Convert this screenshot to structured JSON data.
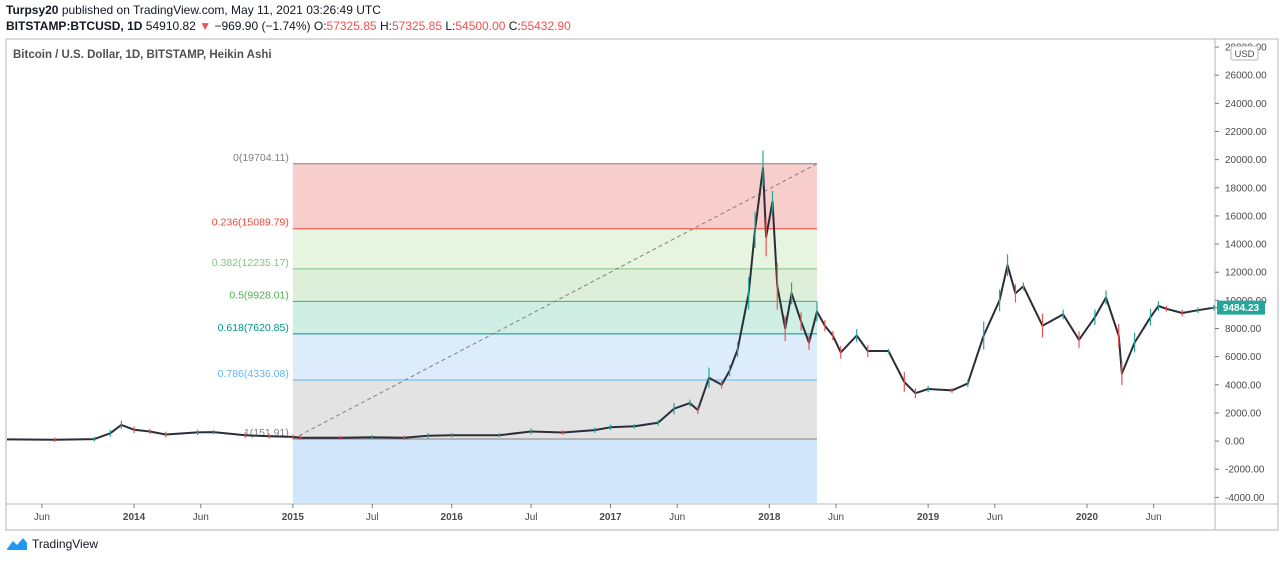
{
  "header": {
    "author": "Turpsy20",
    "published_text": "published on TradingView.com, May 11, 2021 03:26:49 UTC",
    "symbol_label": "BITSTAMP:BTCUSD, 1D",
    "last": "54910.82",
    "down_arrow": "▼",
    "change": "−969.90 (−1.74%)",
    "o_label": "O:",
    "o_value": "57325.85",
    "h_label": "H:",
    "h_value": "57325.85",
    "l_label": "L:",
    "l_value": "54500.00",
    "c_label": "C:",
    "c_value": "55432.90"
  },
  "footer": {
    "brand": "TradingView"
  },
  "colors": {
    "up": "#26a69a",
    "down": "#ef5350",
    "candle": "#2a2e39"
  },
  "chart_data": {
    "type": "line",
    "title": "Bitcoin / U.S. Dollar, 1D, BITSTAMP, Heikin Ashi",
    "currency_label": "USD",
    "ylim": [
      -4400,
      28500
    ],
    "y_ticks": [
      "28000.00",
      "26000.00",
      "24000.00",
      "22000.00",
      "20000.00",
      "18000.00",
      "16000.00",
      "14000.00",
      "12000.00",
      "10000.00",
      "8000.00",
      "6000.00",
      "4000.00",
      "2000.00",
      "0.00",
      "-2000.00",
      "-4000.00"
    ],
    "x_start": 2013.2,
    "x_end": 2020.8,
    "x_ticks": [
      {
        "label": "Jun",
        "t": 2013.42
      },
      {
        "label": "2014",
        "t": 2014.0
      },
      {
        "label": "Jun",
        "t": 2014.42
      },
      {
        "label": "2015",
        "t": 2015.0
      },
      {
        "label": "Jul",
        "t": 2015.5
      },
      {
        "label": "2016",
        "t": 2016.0
      },
      {
        "label": "Jul",
        "t": 2016.5
      },
      {
        "label": "2017",
        "t": 2017.0
      },
      {
        "label": "Jun",
        "t": 2017.42
      },
      {
        "label": "2018",
        "t": 2018.0
      },
      {
        "label": "Jun",
        "t": 2018.42
      },
      {
        "label": "2019",
        "t": 2019.0
      },
      {
        "label": "Jun",
        "t": 2019.42
      },
      {
        "label": "2020",
        "t": 2020.0
      },
      {
        "label": "Jun",
        "t": 2020.42
      }
    ],
    "last_price_label": "9484.23",
    "last_price": 9484.23,
    "series": [
      {
        "name": "BTCUSD",
        "points": [
          [
            2013.2,
            120
          ],
          [
            2013.5,
            95
          ],
          [
            2013.75,
            140
          ],
          [
            2013.85,
            550
          ],
          [
            2013.92,
            1150
          ],
          [
            2014.0,
            800
          ],
          [
            2014.1,
            680
          ],
          [
            2014.2,
            470
          ],
          [
            2014.4,
            620
          ],
          [
            2014.5,
            640
          ],
          [
            2014.7,
            420
          ],
          [
            2014.85,
            350
          ],
          [
            2015.0,
            300
          ],
          [
            2015.05,
            240
          ],
          [
            2015.3,
            235
          ],
          [
            2015.5,
            270
          ],
          [
            2015.7,
            235
          ],
          [
            2015.85,
            380
          ],
          [
            2016.0,
            420
          ],
          [
            2016.3,
            420
          ],
          [
            2016.5,
            680
          ],
          [
            2016.7,
            610
          ],
          [
            2016.9,
            780
          ],
          [
            2017.0,
            980
          ],
          [
            2017.15,
            1050
          ],
          [
            2017.3,
            1300
          ],
          [
            2017.4,
            2300
          ],
          [
            2017.5,
            2700
          ],
          [
            2017.55,
            2200
          ],
          [
            2017.62,
            4500
          ],
          [
            2017.7,
            4000
          ],
          [
            2017.75,
            5000
          ],
          [
            2017.8,
            6500
          ],
          [
            2017.87,
            10500
          ],
          [
            2017.91,
            15000
          ],
          [
            2017.96,
            19400
          ],
          [
            2017.98,
            14500
          ],
          [
            2018.02,
            17000
          ],
          [
            2018.05,
            11000
          ],
          [
            2018.1,
            8000
          ],
          [
            2018.14,
            10500
          ],
          [
            2018.2,
            8500
          ],
          [
            2018.25,
            7000
          ],
          [
            2018.3,
            9200
          ],
          [
            2018.35,
            8200
          ],
          [
            2018.4,
            7500
          ],
          [
            2018.45,
            6300
          ],
          [
            2018.55,
            7500
          ],
          [
            2018.62,
            6400
          ],
          [
            2018.75,
            6400
          ],
          [
            2018.85,
            4200
          ],
          [
            2018.92,
            3400
          ],
          [
            2019.0,
            3700
          ],
          [
            2019.15,
            3600
          ],
          [
            2019.25,
            4100
          ],
          [
            2019.35,
            7500
          ],
          [
            2019.45,
            10000
          ],
          [
            2019.5,
            12500
          ],
          [
            2019.55,
            10500
          ],
          [
            2019.6,
            11000
          ],
          [
            2019.72,
            8200
          ],
          [
            2019.85,
            9000
          ],
          [
            2019.95,
            7200
          ],
          [
            2020.05,
            8800
          ],
          [
            2020.12,
            10200
          ],
          [
            2020.2,
            7500
          ],
          [
            2020.22,
            4800
          ],
          [
            2020.3,
            7000
          ],
          [
            2020.4,
            8800
          ],
          [
            2020.45,
            9600
          ],
          [
            2020.5,
            9400
          ],
          [
            2020.6,
            9100
          ],
          [
            2020.7,
            9300
          ],
          [
            2020.8,
            9484
          ]
        ]
      }
    ],
    "fib": {
      "x_from": 2015.0,
      "x_to": 2018.3,
      "levels": [
        {
          "label": "0(19704.11)",
          "value": 19704.11,
          "color": "#808080"
        },
        {
          "label": "0.236(15089.79)",
          "value": 15089.79,
          "color": "#f44336"
        },
        {
          "label": "0.382(12235.17)",
          "value": 12235.17,
          "color": "#81c784"
        },
        {
          "label": "0.5(9928.01)",
          "value": 9928.01,
          "color": "#4caf50"
        },
        {
          "label": "0.618(7620.85)",
          "value": 7620.85,
          "color": "#009688"
        },
        {
          "label": "0.786(4336.08)",
          "value": 4336.08,
          "color": "#64b5f6"
        },
        {
          "label": "1(151.91)",
          "value": 151.91,
          "color": "#808080"
        }
      ],
      "bands": [
        {
          "from": 19704.11,
          "to": 15089.79,
          "color": "#f8cecc"
        },
        {
          "from": 15089.79,
          "to": 12235.17,
          "color": "#e6f4e0"
        },
        {
          "from": 12235.17,
          "to": 9928.01,
          "color": "#ddefd8"
        },
        {
          "from": 9928.01,
          "to": 7620.85,
          "color": "#cfeee4"
        },
        {
          "from": 7620.85,
          "to": 4336.08,
          "color": "#dcecfb"
        },
        {
          "from": 4336.08,
          "to": 151.91,
          "color": "#e3e3e3"
        },
        {
          "from": 151.91,
          "to": -4400,
          "color": "#d2e6fb"
        }
      ]
    }
  }
}
